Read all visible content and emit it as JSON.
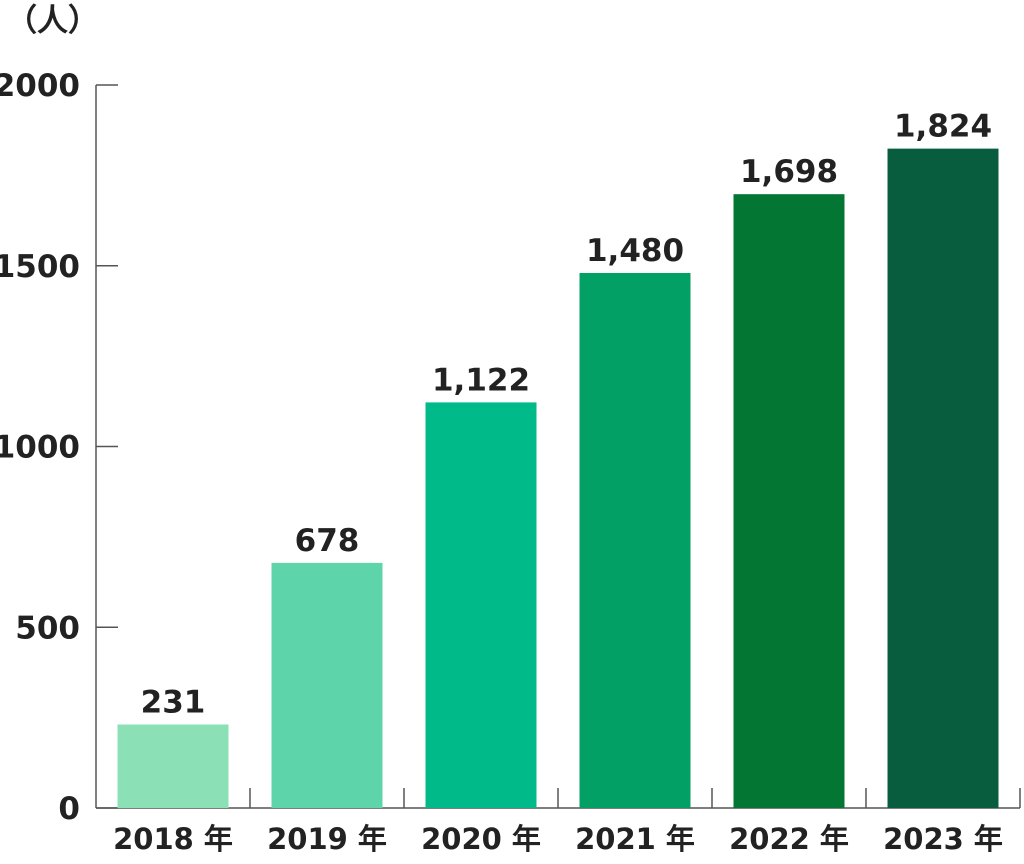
{
  "chart_data": {
    "type": "bar",
    "unit_label": "（人）",
    "categories": [
      "2018 年",
      "2019 年",
      "2020 年",
      "2021 年",
      "2022 年",
      "2023 年"
    ],
    "values": [
      231,
      678,
      1122,
      1480,
      1698,
      1824
    ],
    "value_labels": [
      "231",
      "678",
      "1,122",
      "1,480",
      "1,698",
      "1,824"
    ],
    "ylim": [
      0,
      2000
    ],
    "yticks": [
      0,
      500,
      1000,
      1500,
      2000
    ],
    "grid": false,
    "bar_colors": [
      "#8ce0b6",
      "#5dd4aa",
      "#00bb89",
      "#03a066",
      "#047634",
      "#095d3f"
    ],
    "axis_color": "#555555"
  }
}
